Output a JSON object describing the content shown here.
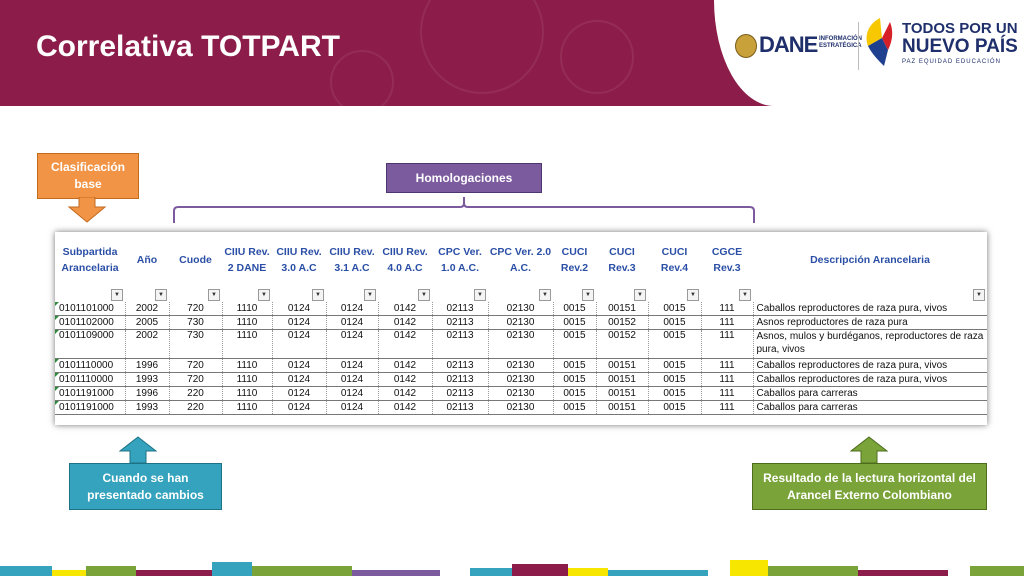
{
  "slide": {
    "title": "Correlativa TOTPART"
  },
  "logos": {
    "dane": {
      "word": "DANE",
      "sub": "INFORMACIÓN ESTRATÉGICA"
    },
    "gobierno": {
      "line1": "TODOS POR UN",
      "line2": "NUEVO PAÍS",
      "line3": "PAZ  EQUIDAD  EDUCACIÓN"
    }
  },
  "callouts": {
    "base": "Clasificación base",
    "homologaciones": "Homologaciones",
    "cambios": "Cuando se han presentado cambios",
    "resultado": "Resultado de la lectura horizontal del Arancel Externo Colombiano"
  },
  "colors": {
    "header": "#8c1d4a",
    "orange": "#f29446",
    "purple": "#7b5b9e",
    "teal": "#35a3bd",
    "green": "#7aa339",
    "table_header": "#2b4fa6"
  },
  "table": {
    "columns": [
      {
        "label": "Subpartida Arancelaria"
      },
      {
        "label": "Año"
      },
      {
        "label": "Cuode"
      },
      {
        "label": "CIIU Rev. 2 DANE"
      },
      {
        "label": "CIIU Rev. 3.0 A.C"
      },
      {
        "label": "CIIU Rev. 3.1 A.C"
      },
      {
        "label": "CIIU Rev. 4.0 A.C"
      },
      {
        "label": "CPC Ver. 1.0 A.C."
      },
      {
        "label": "CPC Ver. 2.0 A.C."
      },
      {
        "label": "CUCI Rev.2"
      },
      {
        "label": "CUCI Rev.3"
      },
      {
        "label": "CUCI Rev.4"
      },
      {
        "label": "CGCE Rev.3"
      },
      {
        "label": "Descripción Arancelaria"
      }
    ],
    "filter_icon": "filter-dropdown-icon",
    "rows": [
      {
        "tall": false,
        "cells": [
          "0101101000",
          "2002",
          "720",
          "1110",
          "0124",
          "0124",
          "0142",
          "02113",
          "02130",
          "0015",
          "00151",
          "0015",
          "111",
          "Caballos reproductores de raza pura, vivos"
        ]
      },
      {
        "tall": false,
        "cells": [
          "0101102000",
          "2005",
          "730",
          "1110",
          "0124",
          "0124",
          "0142",
          "02113",
          "02130",
          "0015",
          "00152",
          "0015",
          "111",
          "Asnos reproductores de raza pura"
        ]
      },
      {
        "tall": true,
        "cells": [
          "0101109000",
          "2002",
          "730",
          "1110",
          "0124",
          "0124",
          "0142",
          "02113",
          "02130",
          "0015",
          "00152",
          "0015",
          "111",
          "Asnos, mulos y burdéganos, reproductores de raza pura, vivos"
        ]
      },
      {
        "tall": false,
        "cells": [
          "0101110000",
          "1996",
          "720",
          "1110",
          "0124",
          "0124",
          "0142",
          "02113",
          "02130",
          "0015",
          "00151",
          "0015",
          "111",
          "Caballos reproductores de raza pura, vivos"
        ]
      },
      {
        "tall": false,
        "cells": [
          "0101110000",
          "1993",
          "720",
          "1110",
          "0124",
          "0124",
          "0142",
          "02113",
          "02130",
          "0015",
          "00151",
          "0015",
          "111",
          "Caballos reproductores de raza pura, vivos"
        ]
      },
      {
        "tall": false,
        "cells": [
          "0101191000",
          "1996",
          "220",
          "1110",
          "0124",
          "0124",
          "0142",
          "02113",
          "02130",
          "0015",
          "00151",
          "0015",
          "111",
          "Caballos para carreras"
        ]
      },
      {
        "tall": false,
        "cells": [
          "0101191000",
          "1993",
          "220",
          "1110",
          "0124",
          "0124",
          "0142",
          "02113",
          "02130",
          "0015",
          "00151",
          "0015",
          "111",
          "Caballos para carreras"
        ]
      }
    ]
  }
}
